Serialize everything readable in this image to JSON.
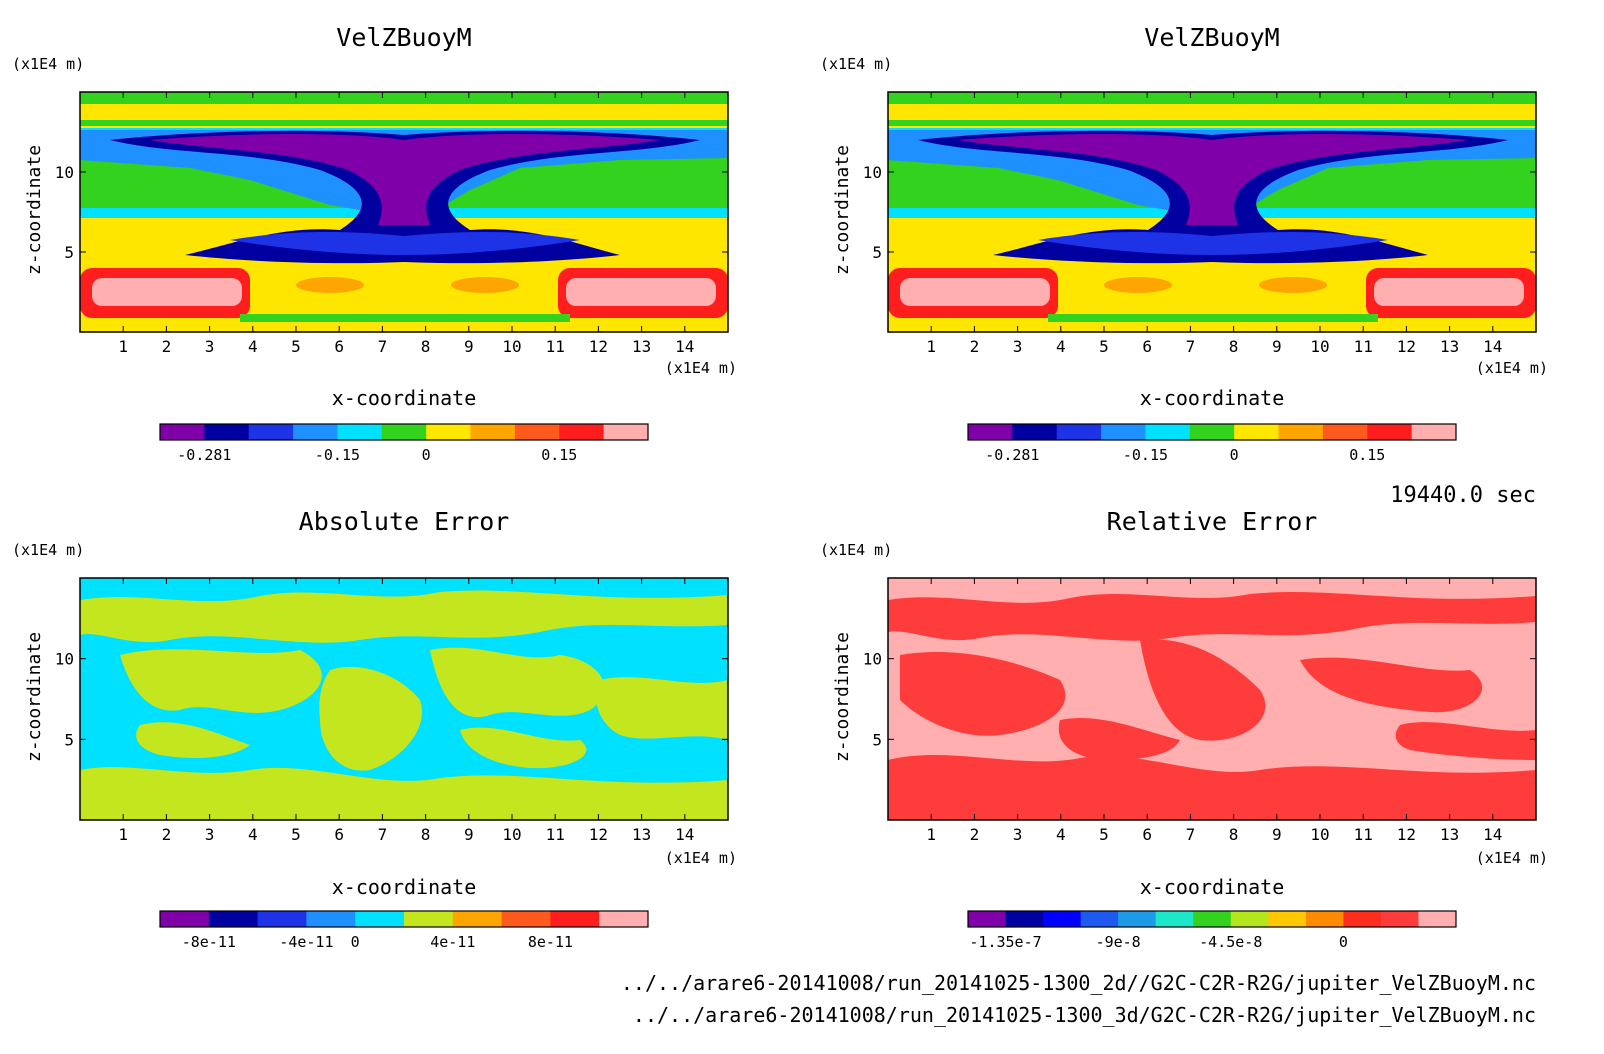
{
  "time_label": "19440.0 sec",
  "file_lines": [
    "../../arare6-20141008/run_20141025-1300_2d//G2C-C2R-R2G/jupiter_VelZBuoyM.nc",
    "../../arare6-20141008/run_20141025-1300_3d/G2C-C2R-R2G/jupiter_VelZBuoyM.nc"
  ],
  "chart_data": [
    {
      "type": "heatmap",
      "title": "VelZBuoyM",
      "xlabel": "x-coordinate",
      "ylabel": "z-coordinate",
      "x_unit": "(x1E4 m)",
      "y_unit": "(x1E4 m)",
      "xlim": [
        0,
        15
      ],
      "ylim": [
        0,
        15
      ],
      "x_ticks": [
        1,
        2,
        3,
        4,
        5,
        6,
        7,
        8,
        9,
        10,
        11,
        12,
        13,
        14
      ],
      "y_ticks": [
        5,
        10
      ],
      "colorbar": {
        "colors": [
          "#7f00a8",
          "#0000a0",
          "#1e32e6",
          "#1e90ff",
          "#00e0ff",
          "#32d21e",
          "#ffe600",
          "#ffa500",
          "#ff5a1e",
          "#ff1e1e",
          "#ffafaf"
        ],
        "tick_labels": [
          "-0.281",
          "-0.15",
          "0",
          "0.15"
        ]
      }
    },
    {
      "type": "heatmap",
      "title": "VelZBuoyM",
      "xlabel": "x-coordinate",
      "ylabel": "z-coordinate",
      "x_unit": "(x1E4 m)",
      "y_unit": "(x1E4 m)",
      "xlim": [
        0,
        15
      ],
      "ylim": [
        0,
        15
      ],
      "x_ticks": [
        1,
        2,
        3,
        4,
        5,
        6,
        7,
        8,
        9,
        10,
        11,
        12,
        13,
        14
      ],
      "y_ticks": [
        5,
        10
      ],
      "colorbar": {
        "colors": [
          "#7f00a8",
          "#0000a0",
          "#1e32e6",
          "#1e90ff",
          "#00e0ff",
          "#32d21e",
          "#ffe600",
          "#ffa500",
          "#ff5a1e",
          "#ff1e1e",
          "#ffafaf"
        ],
        "tick_labels": [
          "-0.281",
          "-0.15",
          "0",
          "0.15"
        ]
      }
    },
    {
      "type": "heatmap",
      "title": "Absolute Error",
      "xlabel": "x-coordinate",
      "ylabel": "z-coordinate",
      "x_unit": "(x1E4 m)",
      "y_unit": "(x1E4 m)",
      "xlim": [
        0,
        15
      ],
      "ylim": [
        0,
        15
      ],
      "x_ticks": [
        1,
        2,
        3,
        4,
        5,
        6,
        7,
        8,
        9,
        10,
        11,
        12,
        13,
        14
      ],
      "y_ticks": [
        5,
        10
      ],
      "colorbar": {
        "colors": [
          "#7f00a8",
          "#0000a0",
          "#1e32e6",
          "#1e90ff",
          "#00e0ff",
          "#c3e61e",
          "#ffa500",
          "#ff5a1e",
          "#ff1e1e",
          "#ffafaf"
        ],
        "tick_labels": [
          "-8e-11",
          "-4e-11",
          "0",
          "4e-11",
          "8e-11"
        ]
      }
    },
    {
      "type": "heatmap",
      "title": "Relative Error",
      "xlabel": "x-coordinate",
      "ylabel": "z-coordinate",
      "x_unit": "(x1E4 m)",
      "y_unit": "(x1E4 m)",
      "xlim": [
        0,
        15
      ],
      "ylim": [
        0,
        15
      ],
      "x_ticks": [
        1,
        2,
        3,
        4,
        5,
        6,
        7,
        8,
        9,
        10,
        11,
        12,
        13,
        14
      ],
      "y_ticks": [
        5,
        10
      ],
      "colorbar": {
        "colors": [
          "#7f00a8",
          "#0000a0",
          "#0000ff",
          "#1e5af0",
          "#1e9be6",
          "#1ee6c8",
          "#32d21e",
          "#b4e61e",
          "#ffc800",
          "#ff8c00",
          "#ff2d1e",
          "#ff3c3c",
          "#ffafaf"
        ],
        "tick_labels": [
          "-1.35e-7",
          "-9e-8",
          "-4.5e-8",
          "0"
        ]
      }
    }
  ]
}
